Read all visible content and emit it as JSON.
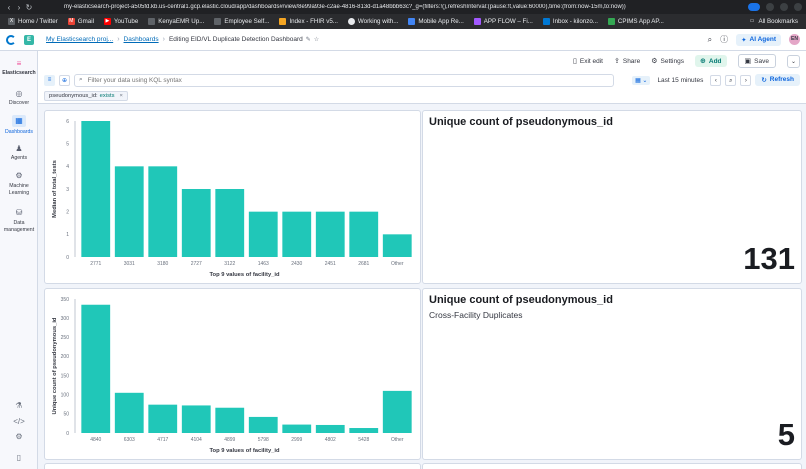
{
  "browser": {
    "url": "my-elasticsearch-project-a505fd.kb.us-central1.gcp.elastic.cloud/app/dashboards#/view/8e99a93e-c2ae-4816-813d-d1a48bbb63c?_g=(filters:!(),refreshInterval:(pause:!t,value:60000),time:(from:now-15m,to:now))",
    "bookmarks": [
      {
        "label": "Home / Twitter",
        "icon": "x-icon"
      },
      {
        "label": "Gmail",
        "icon": "gmail-icon"
      },
      {
        "label": "YouTube",
        "icon": "youtube-icon"
      },
      {
        "label": "KenyaEMR Up...",
        "icon": "kenyaemr-icon"
      },
      {
        "label": "Employee Self...",
        "icon": "employee-icon"
      },
      {
        "label": "Index - FHIR v5...",
        "icon": "fhir-icon"
      },
      {
        "label": "Working with...",
        "icon": "working-icon"
      },
      {
        "label": "Mobile App Re...",
        "icon": "mobile-icon"
      },
      {
        "label": "APP FLOW – Fi...",
        "icon": "figma-icon"
      },
      {
        "label": "Inbox - kilonzo...",
        "icon": "inbox-icon"
      },
      {
        "label": "CPIMS App AP...",
        "icon": "cpims-icon"
      }
    ],
    "all_bookmarks": "All Bookmarks"
  },
  "header": {
    "space_initial": "E",
    "breadcrumbs": [
      "My Elasticsearch proj...",
      "Dashboards"
    ],
    "current": "Editing EID/VL Duplicate Detection Dashboard",
    "ai_agent": "AI Agent",
    "avatar": "EN"
  },
  "sidenav": {
    "brand": "Elasticsearch",
    "items": [
      {
        "label": "Discover",
        "icon": "compass-icon"
      },
      {
        "label": "Dashboards",
        "icon": "dashboard-icon"
      },
      {
        "label": "Agents",
        "icon": "agent-icon"
      },
      {
        "label": "Machine Learning",
        "icon": "ml-icon"
      },
      {
        "label": "Data management",
        "icon": "database-icon"
      }
    ]
  },
  "toolbar": {
    "exit_edit": "Exit edit",
    "share": "Share",
    "settings": "Settings",
    "add": "Add",
    "save": "Save"
  },
  "query": {
    "placeholder": "Filter your data using KQL syntax",
    "time_range": "Last 15 minutes",
    "refresh": "Refresh"
  },
  "filter_pill": {
    "field": "pseudonymous_id:",
    "value": "exists"
  },
  "panels": {
    "metric1": {
      "title": "Unique count of pseudonymous_id",
      "subtitle": "",
      "value": "131"
    },
    "metric2": {
      "title": "Unique count of pseudonymous_id",
      "subtitle": "Cross-Facility Duplicates",
      "value": "5"
    }
  },
  "chart_data": [
    {
      "type": "bar",
      "categories": [
        "2771",
        "3031",
        "3180",
        "2727",
        "3122",
        "1463",
        "2430",
        "2451",
        "2681",
        "Other"
      ],
      "values": [
        6,
        4,
        4,
        3,
        3,
        2,
        2,
        2,
        2,
        1
      ],
      "xlabel": "Top 9 values of facility_id",
      "ylabel": "Median of total_tests",
      "ylim": [
        0,
        6
      ],
      "yticks": [
        0,
        1,
        2,
        3,
        4,
        5,
        6
      ],
      "color": "#20c7b8",
      "grid": false
    },
    {
      "type": "bar",
      "categories": [
        "4840",
        "6303",
        "4717",
        "4104",
        "4899",
        "5798",
        "2999",
        "4802",
        "5428",
        "Other"
      ],
      "values": [
        335,
        105,
        74,
        72,
        66,
        42,
        22,
        21,
        13,
        110
      ],
      "xlabel": "Top 9 values of facility_id",
      "ylabel": "Unique count of pseudonymous_id",
      "ylim": [
        0,
        350
      ],
      "yticks": [
        0,
        50,
        100,
        150,
        200,
        250,
        300,
        350
      ],
      "color": "#20c7b8",
      "grid": false
    }
  ]
}
